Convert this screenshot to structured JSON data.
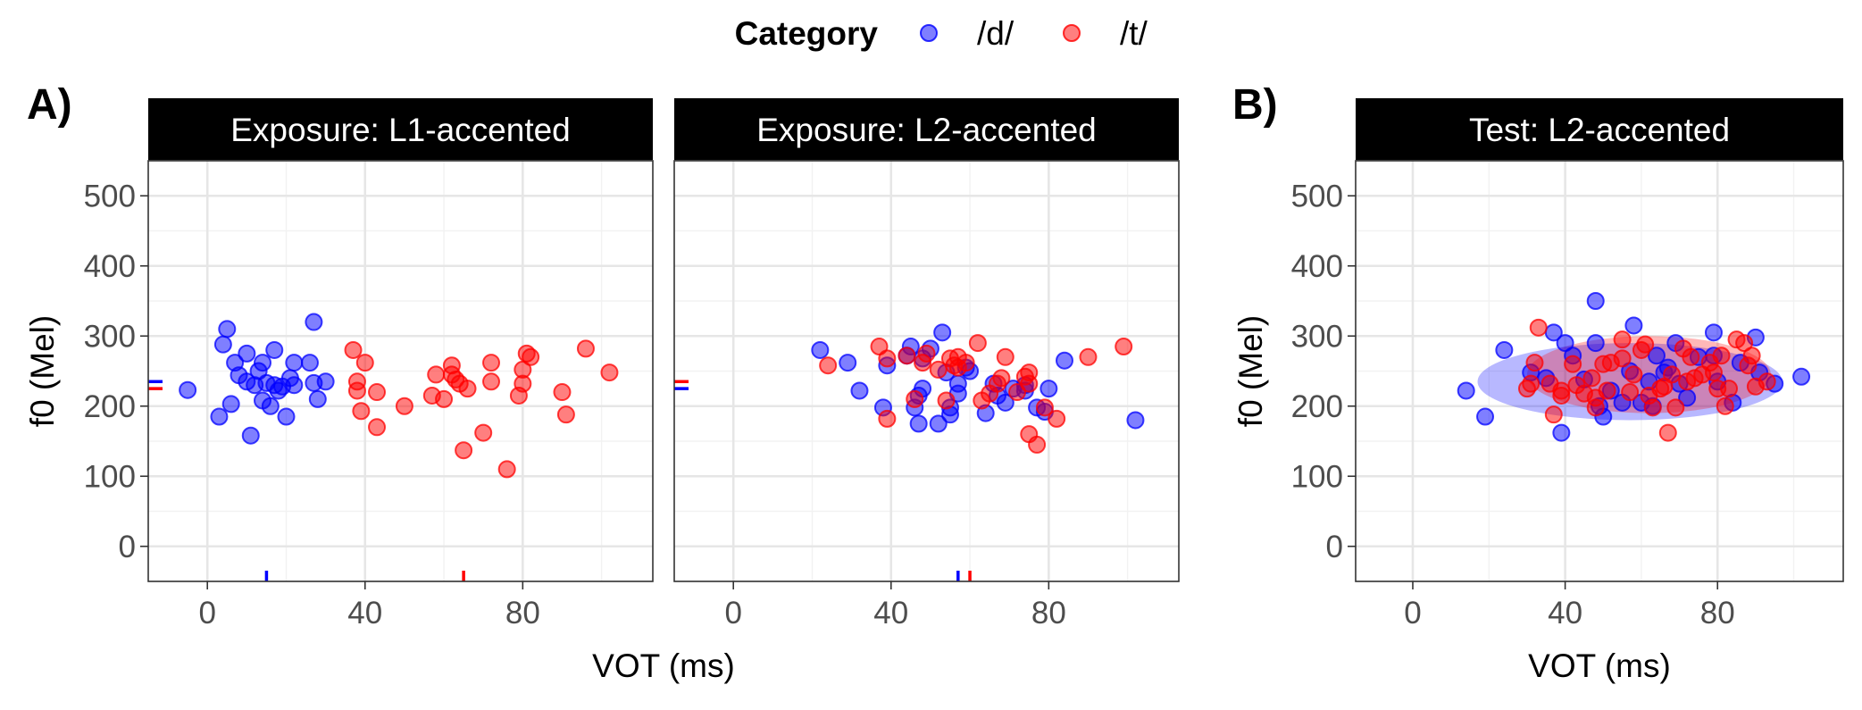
{
  "legend": {
    "title": "Category",
    "items": [
      {
        "label": "/d/",
        "color": "#0000ff"
      },
      {
        "label": "/t/",
        "color": "#ff0000"
      }
    ]
  },
  "chart_data": [
    {
      "type": "scatter",
      "tag": "A)",
      "title": "Exposure: L1-accented",
      "xlabel": "VOT (ms)",
      "ylabel": "f0 (Mel)",
      "xlim": [
        -15,
        113
      ],
      "ylim": [
        -50,
        550
      ],
      "xticks": [
        0,
        40,
        80
      ],
      "yticks": [
        0,
        100,
        200,
        300,
        400,
        500
      ],
      "grid": true,
      "series": [
        {
          "name": "/d/",
          "color": "#0000ff",
          "points": [
            [
              -5,
              223
            ],
            [
              3,
              185
            ],
            [
              4,
              288
            ],
            [
              5,
              310
            ],
            [
              6,
              203
            ],
            [
              7,
              262
            ],
            [
              8,
              244
            ],
            [
              10,
              275
            ],
            [
              10,
              235
            ],
            [
              11,
              158
            ],
            [
              12,
              230
            ],
            [
              13,
              250
            ],
            [
              14,
              208
            ],
            [
              14,
              262
            ],
            [
              15,
              233
            ],
            [
              16,
              200
            ],
            [
              17,
              280
            ],
            [
              17,
              230
            ],
            [
              18,
              222
            ],
            [
              19,
              228
            ],
            [
              20,
              185
            ],
            [
              21,
              240
            ],
            [
              22,
              230
            ],
            [
              22,
              262
            ],
            [
              26,
              262
            ],
            [
              27,
              320
            ],
            [
              27,
              233
            ],
            [
              28,
              210
            ],
            [
              30,
              235
            ]
          ],
          "mean_x": 15,
          "mean_y": 235
        },
        {
          "name": "/t/",
          "color": "#ff0000",
          "points": [
            [
              37,
              280
            ],
            [
              38,
              222
            ],
            [
              38,
              235
            ],
            [
              39,
              193
            ],
            [
              40,
              262
            ],
            [
              43,
              220
            ],
            [
              43,
              170
            ],
            [
              50,
              200
            ],
            [
              57,
              215
            ],
            [
              58,
              245
            ],
            [
              60,
              210
            ],
            [
              62,
              245
            ],
            [
              62,
              258
            ],
            [
              63,
              238
            ],
            [
              64,
              232
            ],
            [
              65,
              137
            ],
            [
              66,
              225
            ],
            [
              70,
              162
            ],
            [
              72,
              235
            ],
            [
              72,
              262
            ],
            [
              76,
              110
            ],
            [
              79,
              215
            ],
            [
              80,
              232
            ],
            [
              80,
              252
            ],
            [
              81,
              275
            ],
            [
              82,
              270
            ],
            [
              90,
              220
            ],
            [
              91,
              188
            ],
            [
              96,
              282
            ],
            [
              102,
              248
            ]
          ],
          "mean_x": 65,
          "mean_y": 225
        }
      ]
    },
    {
      "type": "scatter",
      "title": "Exposure: L2-accented",
      "xlabel": "VOT (ms)",
      "ylabel": "",
      "xlim": [
        -15,
        113
      ],
      "ylim": [
        -50,
        550
      ],
      "xticks": [
        0,
        40,
        80
      ],
      "yticks": [
        0,
        100,
        200,
        300,
        400,
        500
      ],
      "grid": true,
      "series": [
        {
          "name": "/d/",
          "color": "#0000ff",
          "points": [
            [
              22,
              280
            ],
            [
              29,
              262
            ],
            [
              32,
              222
            ],
            [
              38,
              198
            ],
            [
              39,
              258
            ],
            [
              44,
              272
            ],
            [
              45,
              285
            ],
            [
              46,
              198
            ],
            [
              47,
              175
            ],
            [
              47,
              215
            ],
            [
              48,
              225
            ],
            [
              48,
              268
            ],
            [
              50,
              282
            ],
            [
              52,
              175
            ],
            [
              53,
              305
            ],
            [
              54,
              248
            ],
            [
              55,
              188
            ],
            [
              55,
              198
            ],
            [
              57,
              218
            ],
            [
              57,
              232
            ],
            [
              59,
              255
            ],
            [
              60,
              250
            ],
            [
              64,
              190
            ],
            [
              66,
              232
            ],
            [
              67,
              215
            ],
            [
              69,
              205
            ],
            [
              71,
              225
            ],
            [
              74,
              230
            ],
            [
              74,
              222
            ],
            [
              77,
              198
            ],
            [
              79,
              192
            ],
            [
              80,
              225
            ],
            [
              84,
              265
            ],
            [
              102,
              180
            ]
          ],
          "mean_x": 57,
          "mean_y": 225
        },
        {
          "name": "/t/",
          "color": "#ff0000",
          "points": [
            [
              24,
              258
            ],
            [
              37,
              285
            ],
            [
              39,
              182
            ],
            [
              39,
              268
            ],
            [
              44,
              272
            ],
            [
              46,
              210
            ],
            [
              48,
              262
            ],
            [
              49,
              275
            ],
            [
              52,
              252
            ],
            [
              54,
              208
            ],
            [
              55,
              268
            ],
            [
              56,
              258
            ],
            [
              57,
              255
            ],
            [
              57,
              270
            ],
            [
              59,
              262
            ],
            [
              62,
              290
            ],
            [
              63,
              208
            ],
            [
              65,
              218
            ],
            [
              67,
              232
            ],
            [
              68,
              240
            ],
            [
              69,
              270
            ],
            [
              72,
              220
            ],
            [
              74,
              242
            ],
            [
              75,
              160
            ],
            [
              75,
              232
            ],
            [
              75,
              248
            ],
            [
              77,
              145
            ],
            [
              79,
              198
            ],
            [
              82,
              182
            ],
            [
              90,
              270
            ],
            [
              99,
              285
            ]
          ],
          "mean_x": 60,
          "mean_y": 235
        }
      ]
    },
    {
      "type": "scatter",
      "tag": "B)",
      "title": "Test: L2-accented",
      "xlabel": "VOT (ms)",
      "ylabel": "f0 (Mel)",
      "xlim": [
        -15,
        113
      ],
      "ylim": [
        -50,
        550
      ],
      "xticks": [
        0,
        40,
        80
      ],
      "yticks": [
        0,
        100,
        200,
        300,
        400,
        500
      ],
      "grid": true,
      "ellipses": [
        {
          "series": "/d/",
          "color": "#0000ff",
          "cx": 57,
          "cy": 235,
          "rx": 40,
          "ry": 55
        },
        {
          "series": "/t/",
          "color": "#ff0000",
          "cx": 62,
          "cy": 245,
          "rx": 32,
          "ry": 55
        }
      ],
      "series": [
        {
          "name": "/d/",
          "color": "#0000ff",
          "points": [
            [
              14,
              222
            ],
            [
              19,
              185
            ],
            [
              24,
              280
            ],
            [
              31,
              248
            ],
            [
              35,
              240
            ],
            [
              37,
              305
            ],
            [
              39,
              162
            ],
            [
              40,
              290
            ],
            [
              42,
              272
            ],
            [
              45,
              238
            ],
            [
              48,
              350
            ],
            [
              48,
              290
            ],
            [
              49,
              200
            ],
            [
              50,
              185
            ],
            [
              52,
              222
            ],
            [
              55,
              205
            ],
            [
              57,
              250
            ],
            [
              58,
              315
            ],
            [
              60,
              205
            ],
            [
              62,
              235
            ],
            [
              63,
              200
            ],
            [
              64,
              272
            ],
            [
              66,
              248
            ],
            [
              67,
              255
            ],
            [
              69,
              290
            ],
            [
              70,
              232
            ],
            [
              72,
              212
            ],
            [
              75,
              270
            ],
            [
              79,
              305
            ],
            [
              79,
              272
            ],
            [
              80,
              235
            ],
            [
              84,
              205
            ],
            [
              86,
              262
            ],
            [
              90,
              298
            ],
            [
              91,
              248
            ],
            [
              95,
              232
            ],
            [
              102,
              242
            ]
          ],
          "mean_x": 57,
          "mean_y": 235
        },
        {
          "name": "/t/",
          "color": "#ff0000",
          "points": [
            [
              30,
              225
            ],
            [
              31,
              232
            ],
            [
              32,
              262
            ],
            [
              33,
              312
            ],
            [
              36,
              232
            ],
            [
              37,
              188
            ],
            [
              39,
              215
            ],
            [
              39,
              222
            ],
            [
              42,
              260
            ],
            [
              43,
              230
            ],
            [
              45,
              218
            ],
            [
              47,
              240
            ],
            [
              48,
              198
            ],
            [
              48,
              212
            ],
            [
              50,
              260
            ],
            [
              51,
              222
            ],
            [
              52,
              262
            ],
            [
              55,
              295
            ],
            [
              55,
              268
            ],
            [
              57,
              220
            ],
            [
              58,
              245
            ],
            [
              60,
              280
            ],
            [
              61,
              288
            ],
            [
              62,
              215
            ],
            [
              63,
              198
            ],
            [
              65,
              225
            ],
            [
              66,
              228
            ],
            [
              67,
              162
            ],
            [
              68,
              245
            ],
            [
              69,
              198
            ],
            [
              71,
              282
            ],
            [
              72,
              235
            ],
            [
              73,
              270
            ],
            [
              74,
              240
            ],
            [
              76,
              245
            ],
            [
              78,
              262
            ],
            [
              79,
              248
            ],
            [
              80,
              225
            ],
            [
              81,
              272
            ],
            [
              82,
              200
            ],
            [
              83,
              225
            ],
            [
              85,
              295
            ],
            [
              87,
              290
            ],
            [
              88,
              258
            ],
            [
              89,
              272
            ],
            [
              90,
              228
            ],
            [
              93,
              235
            ]
          ],
          "mean_x": 62,
          "mean_y": 245
        }
      ]
    }
  ]
}
